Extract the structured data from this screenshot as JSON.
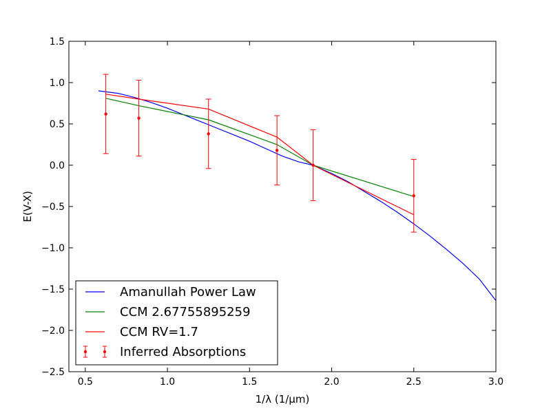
{
  "chart_data": {
    "type": "line",
    "xlabel": "1/λ (1/μm)",
    "ylabel": "E(V-X)",
    "xlim": [
      0.4,
      3.0
    ],
    "ylim": [
      -2.5,
      1.5
    ],
    "xticks": [
      0.5,
      1.0,
      1.5,
      2.0,
      2.5,
      3.0
    ],
    "xtick_labels": [
      "0.5",
      "1.0",
      "1.5",
      "2.0",
      "2.5",
      "3.0"
    ],
    "yticks": [
      -2.5,
      -2.0,
      -1.5,
      -1.0,
      -0.5,
      0.0,
      0.5,
      1.0,
      1.5
    ],
    "ytick_labels": [
      "−2.5",
      "−2.0",
      "−1.5",
      "−1.0",
      "−0.5",
      "0.0",
      "0.5",
      "1.0",
      "1.5"
    ],
    "grid": false,
    "legend_position": "lower-left",
    "series": [
      {
        "name": "Amanullah Power Law",
        "kind": "line",
        "color": "#0000ff",
        "x": [
          0.58,
          0.7,
          0.8,
          0.9,
          1.0,
          1.1,
          1.2,
          1.3,
          1.4,
          1.5,
          1.6,
          1.7,
          1.8,
          1.887,
          2.0,
          2.1,
          2.2,
          2.3,
          2.4,
          2.5,
          2.6,
          2.7,
          2.8,
          2.9,
          3.0
        ],
        "y": [
          0.9,
          0.87,
          0.82,
          0.76,
          0.69,
          0.61,
          0.53,
          0.45,
          0.37,
          0.29,
          0.2,
          0.11,
          0.04,
          0.0,
          -0.1,
          -0.2,
          -0.32,
          -0.44,
          -0.57,
          -0.71,
          -0.86,
          -1.02,
          -1.19,
          -1.38,
          -1.64
        ]
      },
      {
        "name": "CCM 2.67755895259",
        "kind": "line",
        "color": "#008000",
        "x": [
          0.625,
          0.826,
          1.25,
          1.667,
          1.887,
          2.5
        ],
        "y": [
          0.81,
          0.72,
          0.55,
          0.25,
          0.0,
          -0.38
        ]
      },
      {
        "name": "CCM RV=1.7",
        "kind": "line",
        "color": "#ff0000",
        "x": [
          0.625,
          0.826,
          1.25,
          1.667,
          1.887,
          2.5
        ],
        "y": [
          0.86,
          0.8,
          0.68,
          0.34,
          0.0,
          -0.6
        ]
      },
      {
        "name": "Inferred Absorptions",
        "kind": "errorbar",
        "color": "#ff0000",
        "x": [
          0.625,
          0.826,
          1.25,
          1.667,
          1.887,
          2.5
        ],
        "y": [
          0.62,
          0.57,
          0.38,
          0.18,
          0.0,
          -0.37
        ],
        "yerr": [
          0.48,
          0.46,
          0.42,
          0.42,
          0.43,
          0.44
        ]
      }
    ]
  }
}
